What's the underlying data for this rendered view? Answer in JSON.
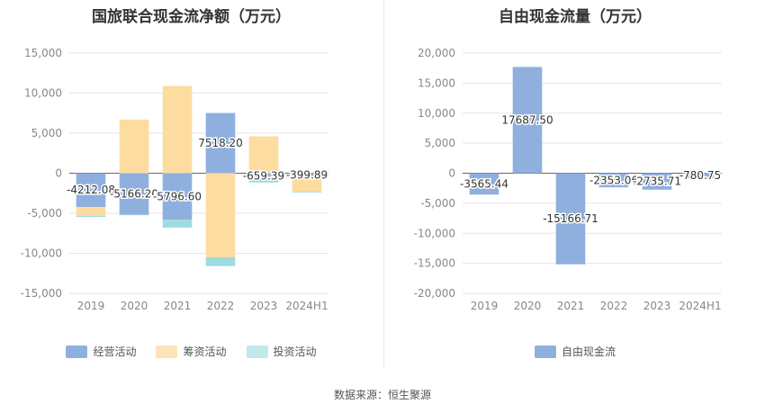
{
  "chart_data": [
    {
      "type": "bar",
      "stacked": true,
      "title": "国旅联合现金流净额（万元）",
      "categories": [
        "2019",
        "2020",
        "2021",
        "2022",
        "2023",
        "2024H1"
      ],
      "ylim": [
        -15000,
        15000
      ],
      "yticks": [
        "15,000",
        "10,000",
        "5,000",
        "0",
        "-5,000",
        "-10,000",
        "-15,000"
      ],
      "series": [
        {
          "name": "经营活动",
          "color": "#8fb0df",
          "values": [
            -4212.08,
            -5166.2,
            -5796.6,
            7518.2,
            -659.39,
            -399.89
          ]
        },
        {
          "name": "筹资活动",
          "color": "#fddca0",
          "values": [
            -1100,
            6700,
            10900,
            -10500,
            4600,
            -1900
          ]
        },
        {
          "name": "投资活动",
          "color": "#9fdbe0",
          "values": [
            -150,
            -80,
            -1000,
            -1100,
            -500,
            -100
          ]
        }
      ],
      "data_labels": [
        "-4212.08",
        "-5166.20",
        "-5796.60",
        "7518.20",
        "-659.39",
        "-399.89"
      ],
      "grid": true,
      "legend": "bottom"
    },
    {
      "type": "bar",
      "title": "自由现金流量（万元）",
      "categories": [
        "2019",
        "2020",
        "2021",
        "2022",
        "2023",
        "2024H1"
      ],
      "ylim": [
        -20000,
        20000
      ],
      "yticks": [
        "20,000",
        "15,000",
        "10,000",
        "5,000",
        "0",
        "-5,000",
        "-10,000",
        "-15,000",
        "-20,000"
      ],
      "series": [
        {
          "name": "自由现金流",
          "color": "#8fb0df",
          "values": [
            -3565.44,
            17687.5,
            -15166.71,
            -2353.06,
            -2735.71,
            -780.75
          ]
        }
      ],
      "data_labels": [
        "-3565.44",
        "17687.50",
        "-15166.71",
        "-2353.06",
        "-2735.71",
        "-780.75"
      ],
      "grid": true,
      "legend": "bottom"
    }
  ],
  "source_text": "数据来源：恒生聚源"
}
